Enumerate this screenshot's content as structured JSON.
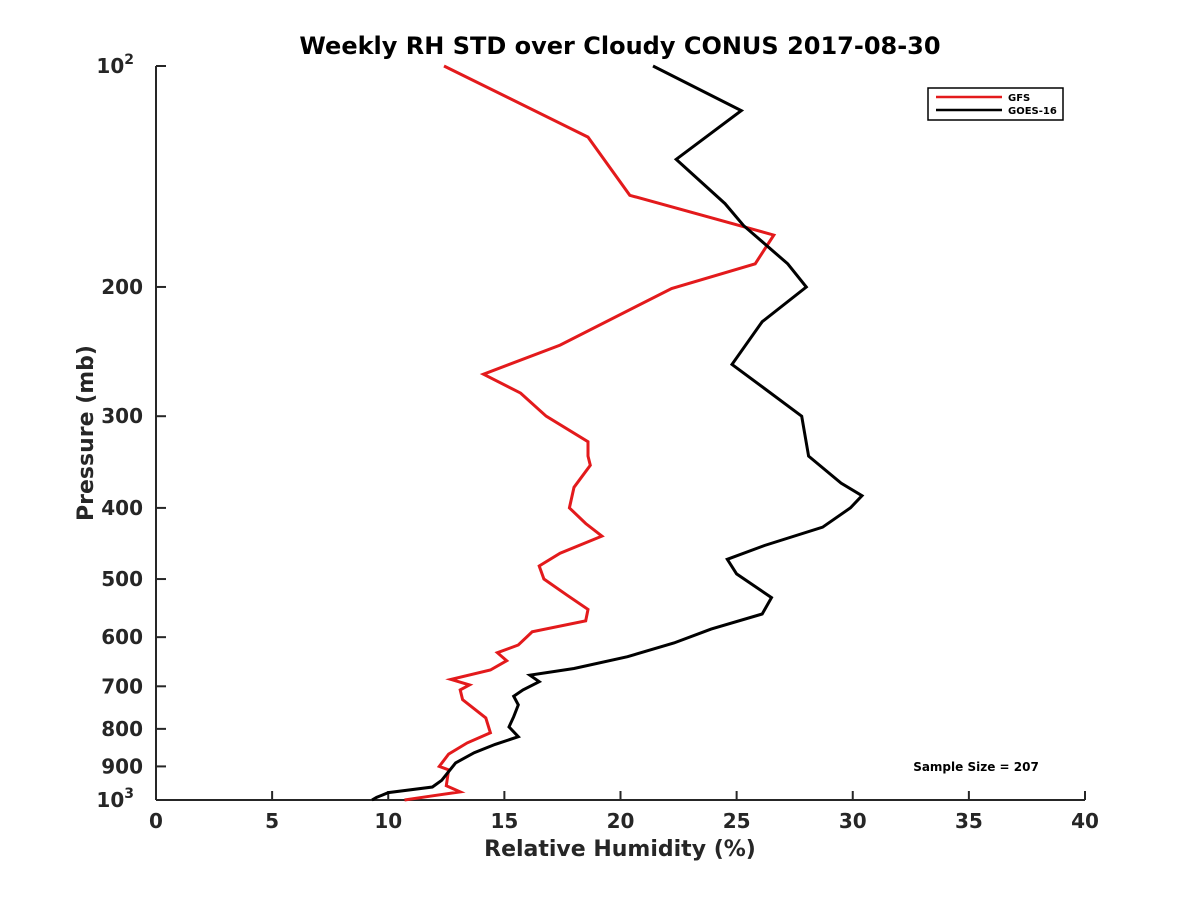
{
  "chart_data": {
    "type": "line",
    "title": "Weekly RH STD over Cloudy CONUS 2017-08-30",
    "xlabel": "Relative Humidity (%)",
    "ylabel": "Pressure (mb)",
    "xlim": [
      0,
      40
    ],
    "ylim": [
      100,
      1000
    ],
    "yscale": "log",
    "y_reversed": true,
    "grid": false,
    "legend_position": "top-right",
    "x_ticks": [
      {
        "value": 0,
        "label": "0"
      },
      {
        "value": 5,
        "label": "5"
      },
      {
        "value": 10,
        "label": "10"
      },
      {
        "value": 15,
        "label": "15"
      },
      {
        "value": 20,
        "label": "20"
      },
      {
        "value": 25,
        "label": "25"
      },
      {
        "value": 30,
        "label": "30"
      },
      {
        "value": 35,
        "label": "35"
      },
      {
        "value": 40,
        "label": "40"
      }
    ],
    "y_ticks": [
      {
        "value": 100,
        "label": "10",
        "sup": "2"
      },
      {
        "value": 200,
        "label": "200",
        "sup": ""
      },
      {
        "value": 300,
        "label": "300",
        "sup": ""
      },
      {
        "value": 400,
        "label": "400",
        "sup": ""
      },
      {
        "value": 500,
        "label": "500",
        "sup": ""
      },
      {
        "value": 600,
        "label": "600",
        "sup": ""
      },
      {
        "value": 700,
        "label": "700",
        "sup": ""
      },
      {
        "value": 800,
        "label": "800",
        "sup": ""
      },
      {
        "value": 900,
        "label": "900",
        "sup": ""
      },
      {
        "value": 1000,
        "label": "10",
        "sup": "3"
      }
    ],
    "annotation": "Sample Size = 207",
    "series": [
      {
        "name": "GFS",
        "color": "#e31a1c",
        "points": [
          [
            12.4,
            100
          ],
          [
            18.6,
            125
          ],
          [
            20.4,
            150
          ],
          [
            26.6,
            170
          ],
          [
            25.8,
            186
          ],
          [
            22.2,
            201
          ],
          [
            17.4,
            240
          ],
          [
            14.1,
            263
          ],
          [
            15.7,
            279
          ],
          [
            16.8,
            300
          ],
          [
            18.6,
            325
          ],
          [
            18.6,
            340
          ],
          [
            18.7,
            350
          ],
          [
            18.0,
            375
          ],
          [
            17.8,
            400
          ],
          [
            18.5,
            420
          ],
          [
            19.2,
            437
          ],
          [
            17.4,
            461
          ],
          [
            16.5,
            480
          ],
          [
            16.7,
            500
          ],
          [
            17.7,
            526
          ],
          [
            18.6,
            550
          ],
          [
            18.5,
            570
          ],
          [
            16.2,
            590
          ],
          [
            15.6,
            615
          ],
          [
            14.7,
            630
          ],
          [
            15.1,
            646
          ],
          [
            14.4,
            665
          ],
          [
            12.7,
            685
          ],
          [
            13.5,
            697
          ],
          [
            13.1,
            708
          ],
          [
            13.2,
            730
          ],
          [
            14.2,
            773
          ],
          [
            14.4,
            810
          ],
          [
            13.4,
            836
          ],
          [
            12.6,
            866
          ],
          [
            12.2,
            900
          ],
          [
            12.6,
            910
          ],
          [
            12.5,
            956
          ],
          [
            13.1,
            975
          ],
          [
            11.8,
            988
          ],
          [
            10.7,
            1000
          ]
        ]
      },
      {
        "name": "GOES-16",
        "color": "#000000",
        "points": [
          [
            21.4,
            100
          ],
          [
            25.2,
            115
          ],
          [
            22.4,
            134
          ],
          [
            24.5,
            154
          ],
          [
            25.3,
            165
          ],
          [
            27.2,
            186
          ],
          [
            28.0,
            200
          ],
          [
            26.1,
            223
          ],
          [
            24.8,
            255
          ],
          [
            26.2,
            275
          ],
          [
            27.8,
            300
          ],
          [
            28.1,
            340
          ],
          [
            29.5,
            370
          ],
          [
            30.4,
            385
          ],
          [
            29.9,
            400
          ],
          [
            28.7,
            425
          ],
          [
            26.2,
            450
          ],
          [
            24.6,
            470
          ],
          [
            25.0,
            492
          ],
          [
            26.5,
            530
          ],
          [
            26.1,
            558
          ],
          [
            23.9,
            585
          ],
          [
            22.3,
            611
          ],
          [
            20.3,
            638
          ],
          [
            18.0,
            662
          ],
          [
            16.1,
            676
          ],
          [
            16.5,
            690
          ],
          [
            15.8,
            708
          ],
          [
            15.4,
            722
          ],
          [
            15.6,
            742
          ],
          [
            15.4,
            770
          ],
          [
            15.2,
            795
          ],
          [
            15.6,
            820
          ],
          [
            14.6,
            840
          ],
          [
            13.7,
            862
          ],
          [
            12.9,
            890
          ],
          [
            12.3,
            940
          ],
          [
            11.9,
            960
          ],
          [
            10.0,
            977
          ],
          [
            9.5,
            992
          ],
          [
            9.3,
            1000
          ]
        ]
      }
    ]
  }
}
